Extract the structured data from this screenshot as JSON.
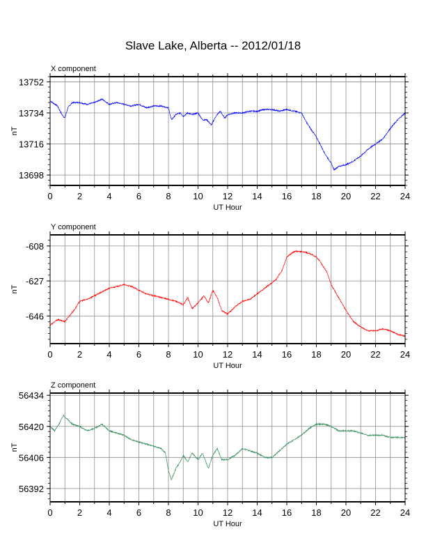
{
  "title": "Slave Lake, Alberta -- 2012/01/18",
  "chart_data": [
    {
      "type": "line",
      "panel_title": "X component",
      "xlabel": "UT Hour",
      "ylabel": "nT",
      "xlim": [
        0,
        24
      ],
      "xticks": [
        0,
        2,
        4,
        6,
        8,
        10,
        12,
        14,
        16,
        18,
        20,
        22,
        24
      ],
      "ylim": [
        13692,
        13755
      ],
      "yticks": [
        13698,
        13716,
        13734,
        13752
      ],
      "color": "#0000ff",
      "series": [
        {
          "x": [
            0,
            0.5,
            0.8,
            1.0,
            1.2,
            1.5,
            2,
            2.5,
            3,
            3.5,
            4,
            4.5,
            5,
            5.5,
            6,
            6.5,
            7,
            7.5,
            8,
            8.2,
            8.5,
            8.8,
            9,
            9.3,
            9.6,
            10,
            10.3,
            10.6,
            10.9,
            11.2,
            11.5,
            11.8,
            12,
            12.5,
            13,
            13.5,
            14,
            14.5,
            15,
            15.5,
            16,
            16.5,
            17,
            17.3,
            17.6,
            18,
            18.3,
            18.6,
            19,
            19.2,
            19.5,
            20,
            20.5,
            21,
            21.5,
            22,
            22.5,
            23,
            23.5,
            24
          ],
          "y": [
            13741,
            13738,
            13733,
            13731,
            13737,
            13740,
            13740,
            13739,
            13740,
            13742,
            13739,
            13740,
            13739,
            13738,
            13739,
            13737,
            13738,
            13738,
            13737,
            13730,
            13733,
            13734,
            13732,
            13734,
            13733,
            13734,
            13730,
            13730,
            13727,
            13732,
            13735,
            13731,
            13733,
            13734,
            13734,
            13735,
            13735,
            13736,
            13736,
            13735,
            13736,
            13735,
            13734,
            13729,
            13725,
            13720,
            13715,
            13710,
            13705,
            13701,
            13703,
            13704,
            13706,
            13709,
            13713,
            13716,
            13719,
            13725,
            13730,
            13734
          ]
        }
      ]
    },
    {
      "type": "line",
      "panel_title": "Y component",
      "xlabel": "UT Hour",
      "ylabel": "nT",
      "xlim": [
        0,
        24
      ],
      "xticks": [
        0,
        2,
        4,
        6,
        8,
        10,
        12,
        14,
        16,
        18,
        20,
        22,
        24
      ],
      "ylim": [
        -661,
        -602
      ],
      "yticks": [
        -608,
        -627,
        -646
      ],
      "color": "#ff0000",
      "series": [
        {
          "x": [
            0,
            0.5,
            1,
            1.3,
            1.7,
            2,
            2.5,
            3,
            3.5,
            4,
            4.5,
            5,
            5.5,
            6,
            6.5,
            7,
            7.5,
            8,
            8.5,
            9,
            9.3,
            9.6,
            10,
            10.4,
            10.7,
            11,
            11.3,
            11.6,
            12,
            12.5,
            13,
            13.5,
            14,
            14.5,
            15,
            15.3,
            15.7,
            16,
            16.5,
            17,
            17.5,
            18,
            18.3,
            18.7,
            19,
            19.5,
            20,
            20.5,
            21,
            21.5,
            22,
            22.5,
            23,
            23.5,
            24
          ],
          "y": [
            -651,
            -648,
            -649,
            -646,
            -642,
            -638,
            -637,
            -635,
            -633,
            -631,
            -630,
            -629,
            -630,
            -632,
            -634,
            -635,
            -636,
            -637,
            -638,
            -640,
            -636,
            -642,
            -639,
            -635,
            -639,
            -632,
            -636,
            -643,
            -645,
            -641,
            -638,
            -637,
            -634,
            -631,
            -628,
            -626,
            -621,
            -614,
            -611,
            -611,
            -612,
            -614,
            -617,
            -622,
            -629,
            -636,
            -643,
            -649,
            -652,
            -654,
            -654,
            -653,
            -654,
            -656,
            -657
          ]
        }
      ]
    },
    {
      "type": "line",
      "panel_title": "Z component",
      "xlabel": "UT Hour",
      "ylabel": "nT",
      "xlim": [
        0,
        24
      ],
      "xticks": [
        0,
        2,
        4,
        6,
        8,
        10,
        12,
        14,
        16,
        18,
        20,
        22,
        24
      ],
      "ylim": [
        56386,
        56435
      ],
      "yticks": [
        56392,
        56406,
        56420,
        56434
      ],
      "color": "#2e8b57",
      "series": [
        {
          "x": [
            0,
            0.3,
            0.6,
            0.9,
            1.2,
            1.5,
            2,
            2.5,
            3,
            3.5,
            4,
            4.5,
            5,
            5.5,
            6,
            6.5,
            7,
            7.5,
            7.8,
            8.0,
            8.2,
            8.5,
            8.8,
            9,
            9.3,
            9.6,
            10,
            10.3,
            10.7,
            11,
            11.3,
            11.6,
            12,
            12.5,
            13,
            13.5,
            14,
            14.5,
            15,
            15.5,
            16,
            16.5,
            17,
            17.5,
            18,
            18.5,
            19,
            19.5,
            20,
            20.5,
            21,
            21.5,
            22,
            22.5,
            23,
            23.5,
            24
          ],
          "y": [
            56420,
            56418,
            56421,
            56425,
            56423,
            56421,
            56420,
            56418,
            56419,
            56421,
            56418,
            56417,
            56416,
            56414,
            56413,
            56412,
            56411,
            56410,
            56408,
            56400,
            56396,
            56401,
            56404,
            56407,
            56404,
            56408,
            56405,
            56408,
            56401,
            56407,
            56410,
            56405,
            56405,
            56407,
            56410,
            56409,
            56408,
            56406,
            56406,
            56409,
            56412,
            56414,
            56416,
            56419,
            56421,
            56421,
            56420,
            56418,
            56418,
            56418,
            56417,
            56416,
            56416,
            56416,
            56415,
            56415,
            56415
          ]
        }
      ]
    }
  ]
}
